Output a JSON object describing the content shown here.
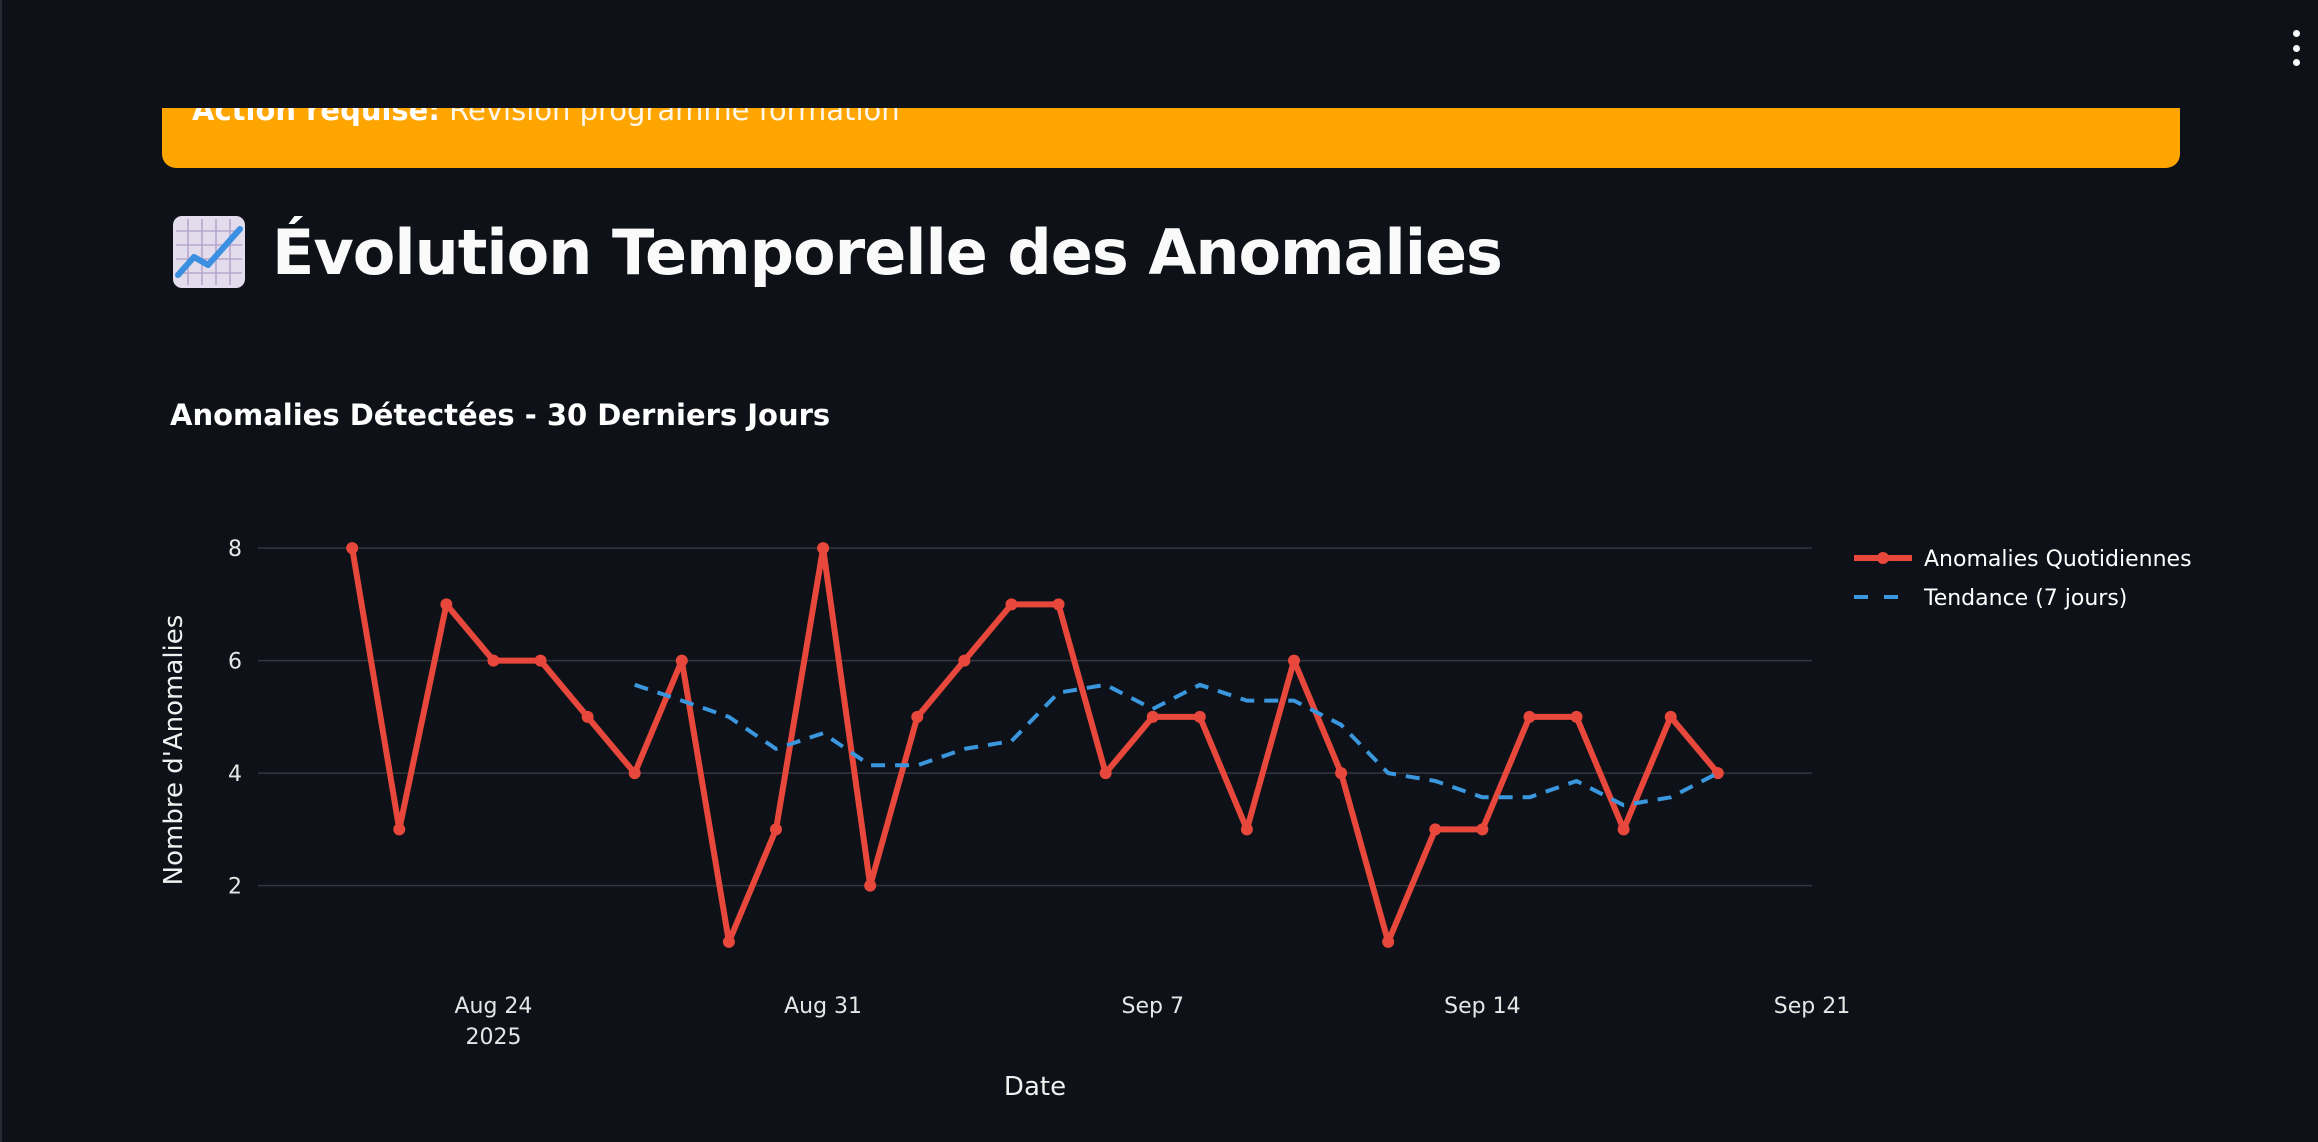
{
  "alert": {
    "label": "Action requise:",
    "message": "Révision programme formation",
    "color": "#ffa500"
  },
  "header": {
    "icon": "chart-increasing-icon",
    "title": "Évolution Temporelle des Anomalies"
  },
  "section": {
    "title": "Anomalies Détectées - 30 Derniers Jours"
  },
  "chart_data": {
    "type": "line",
    "xlabel": "Date",
    "ylabel": "Nombre d'Anomalies",
    "x_ticks": [
      {
        "date": "2025-08-24",
        "label": "Aug 24",
        "sublabel": "2025"
      },
      {
        "date": "2025-08-31",
        "label": "Aug 31",
        "sublabel": ""
      },
      {
        "date": "2025-09-07",
        "label": "Sep 7",
        "sublabel": ""
      },
      {
        "date": "2025-09-14",
        "label": "Sep 14",
        "sublabel": ""
      },
      {
        "date": "2025-09-21",
        "label": "Sep 21",
        "sublabel": ""
      }
    ],
    "y_ticks": [
      2,
      4,
      6,
      8
    ],
    "xlim": [
      "2025-08-19",
      "2025-09-21"
    ],
    "ylim": [
      0.5,
      8.5
    ],
    "grid": true,
    "legend_position": "right",
    "series": [
      {
        "name": "Anomalies Quotidiennes",
        "color": "#e8483c",
        "style": "solid-markers",
        "points": [
          {
            "x": "2025-08-21",
            "y": 8
          },
          {
            "x": "2025-08-22",
            "y": 3
          },
          {
            "x": "2025-08-23",
            "y": 7
          },
          {
            "x": "2025-08-24",
            "y": 6
          },
          {
            "x": "2025-08-25",
            "y": 6
          },
          {
            "x": "2025-08-26",
            "y": 5
          },
          {
            "x": "2025-08-27",
            "y": 4
          },
          {
            "x": "2025-08-28",
            "y": 6
          },
          {
            "x": "2025-08-29",
            "y": 1
          },
          {
            "x": "2025-08-30",
            "y": 3
          },
          {
            "x": "2025-08-31",
            "y": 8
          },
          {
            "x": "2025-09-01",
            "y": 2
          },
          {
            "x": "2025-09-02",
            "y": 5
          },
          {
            "x": "2025-09-03",
            "y": 6
          },
          {
            "x": "2025-09-04",
            "y": 7
          },
          {
            "x": "2025-09-05",
            "y": 7
          },
          {
            "x": "2025-09-06",
            "y": 4
          },
          {
            "x": "2025-09-07",
            "y": 5
          },
          {
            "x": "2025-09-08",
            "y": 5
          },
          {
            "x": "2025-09-09",
            "y": 3
          },
          {
            "x": "2025-09-10",
            "y": 6
          },
          {
            "x": "2025-09-11",
            "y": 4
          },
          {
            "x": "2025-09-12",
            "y": 1
          },
          {
            "x": "2025-09-13",
            "y": 3
          },
          {
            "x": "2025-09-14",
            "y": 3
          },
          {
            "x": "2025-09-15",
            "y": 5
          },
          {
            "x": "2025-09-16",
            "y": 5
          },
          {
            "x": "2025-09-17",
            "y": 3
          },
          {
            "x": "2025-09-18",
            "y": 5
          },
          {
            "x": "2025-09-19",
            "y": 4
          }
        ]
      },
      {
        "name": "Tendance (7 jours)",
        "color": "#3a97de",
        "style": "dashed",
        "points": [
          {
            "x": "2025-08-27",
            "y": 5.57
          },
          {
            "x": "2025-08-28",
            "y": 5.29
          },
          {
            "x": "2025-08-29",
            "y": 5.0
          },
          {
            "x": "2025-08-30",
            "y": 4.43
          },
          {
            "x": "2025-08-31",
            "y": 4.71
          },
          {
            "x": "2025-09-01",
            "y": 4.14
          },
          {
            "x": "2025-09-02",
            "y": 4.14
          },
          {
            "x": "2025-09-03",
            "y": 4.43
          },
          {
            "x": "2025-09-04",
            "y": 4.57
          },
          {
            "x": "2025-09-05",
            "y": 5.43
          },
          {
            "x": "2025-09-06",
            "y": 5.57
          },
          {
            "x": "2025-09-07",
            "y": 5.14
          },
          {
            "x": "2025-09-08",
            "y": 5.57
          },
          {
            "x": "2025-09-09",
            "y": 5.29
          },
          {
            "x": "2025-09-10",
            "y": 5.29
          },
          {
            "x": "2025-09-11",
            "y": 4.86
          },
          {
            "x": "2025-09-12",
            "y": 4.0
          },
          {
            "x": "2025-09-13",
            "y": 3.86
          },
          {
            "x": "2025-09-14",
            "y": 3.57
          },
          {
            "x": "2025-09-15",
            "y": 3.57
          },
          {
            "x": "2025-09-16",
            "y": 3.86
          },
          {
            "x": "2025-09-17",
            "y": 3.43
          },
          {
            "x": "2025-09-18",
            "y": 3.57
          },
          {
            "x": "2025-09-19",
            "y": 4.0
          }
        ]
      }
    ]
  }
}
